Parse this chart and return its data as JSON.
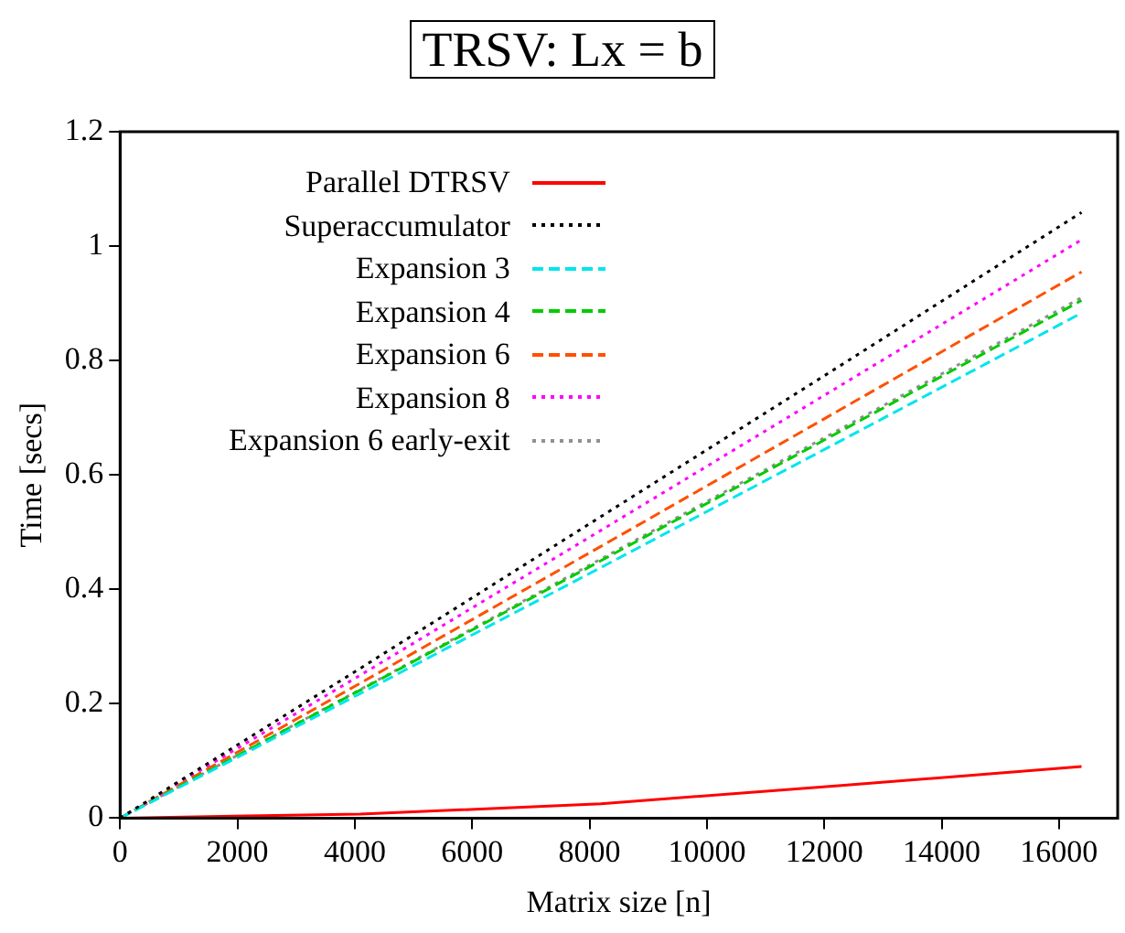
{
  "chart_data": {
    "type": "line",
    "title": "TRSV: Lx = b",
    "xlabel": "Matrix size [n]",
    "ylabel": "Time [secs]",
    "x": [
      0,
      4096,
      8192,
      12288,
      16384
    ],
    "series": [
      {
        "name": "Parallel DTRSV",
        "color": "#ff0000",
        "line_style": "solid",
        "values": [
          0,
          0.007,
          0.025,
          0.057,
          0.09
        ]
      },
      {
        "name": "Superaccumulator",
        "color": "#000000",
        "line_style": "dotted",
        "values": [
          0,
          0.262,
          0.527,
          0.792,
          1.059
        ]
      },
      {
        "name": "Expansion 3",
        "color": "#00e5ee",
        "line_style": "dashed",
        "values": [
          0,
          0.218,
          0.438,
          0.66,
          0.883
        ]
      },
      {
        "name": "Expansion 4",
        "color": "#00cc00",
        "line_style": "dashed",
        "values": [
          0,
          0.224,
          0.45,
          0.677,
          0.905
        ]
      },
      {
        "name": "Expansion 6",
        "color": "#ff5000",
        "line_style": "dashed",
        "values": [
          0,
          0.236,
          0.475,
          0.715,
          0.955
        ]
      },
      {
        "name": "Expansion 8",
        "color": "#ff00ff",
        "line_style": "dotted",
        "values": [
          0,
          0.25,
          0.503,
          0.757,
          1.011
        ]
      },
      {
        "name": "Expansion 6 early-exit",
        "color": "#909090",
        "line_style": "dotted",
        "values": [
          0,
          0.225,
          0.453,
          0.681,
          0.91
        ]
      }
    ],
    "xlim": [
      0,
      17000
    ],
    "xticks": [
      0,
      2000,
      4000,
      6000,
      8000,
      10000,
      12000,
      14000,
      16000
    ],
    "ylim": [
      0,
      1.2
    ],
    "yticks": [
      0,
      0.2,
      0.4,
      0.6,
      0.8,
      1,
      1.2
    ],
    "grid": false,
    "legend": "top left",
    "marker": "none"
  }
}
